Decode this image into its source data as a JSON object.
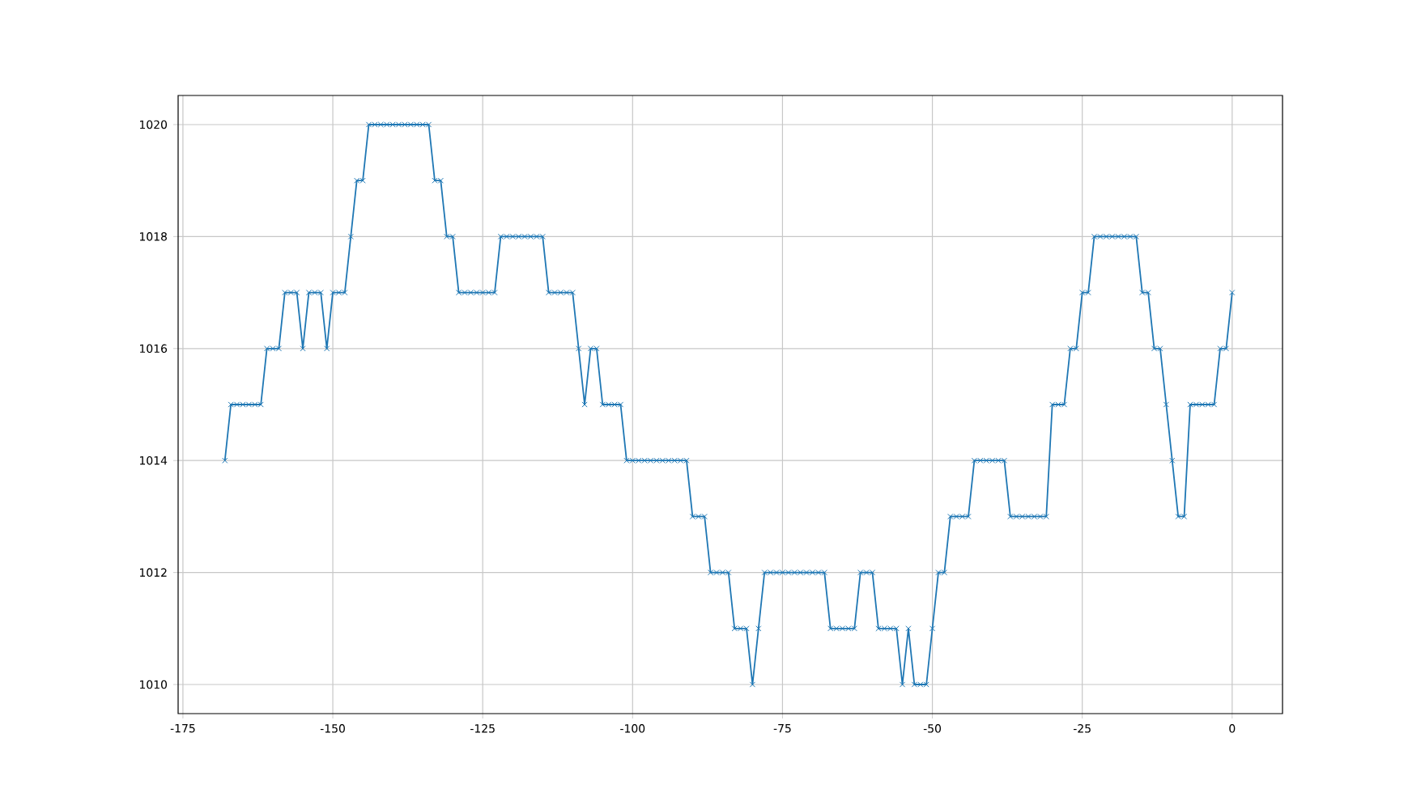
{
  "chart_data": {
    "type": "line",
    "color": "#1f77b4",
    "marker": "cross",
    "grid": true,
    "x": [
      -168,
      -167,
      -166,
      -165,
      -164,
      -163,
      -162,
      -161,
      -160,
      -159,
      -158,
      -157,
      -156,
      -155,
      -154,
      -153,
      -152,
      -151,
      -150,
      -149,
      -148,
      -147,
      -146,
      -145,
      -144,
      -143,
      -142,
      -141,
      -140,
      -139,
      -138,
      -137,
      -136,
      -135,
      -134,
      -133,
      -132,
      -131,
      -130,
      -129,
      -128,
      -127,
      -126,
      -125,
      -124,
      -123,
      -122,
      -121,
      -120,
      -119,
      -118,
      -117,
      -116,
      -115,
      -114,
      -113,
      -112,
      -111,
      -110,
      -109,
      -108,
      -107,
      -106,
      -105,
      -104,
      -103,
      -102,
      -101,
      -100,
      -99,
      -98,
      -97,
      -96,
      -95,
      -94,
      -93,
      -92,
      -91,
      -90,
      -89,
      -88,
      -87,
      -86,
      -85,
      -84,
      -83,
      -82,
      -81,
      -80,
      -79,
      -78,
      -77,
      -76,
      -75,
      -74,
      -73,
      -72,
      -71,
      -70,
      -69,
      -68,
      -67,
      -66,
      -65,
      -64,
      -63,
      -62,
      -61,
      -60,
      -59,
      -58,
      -57,
      -56,
      -55,
      -54,
      -53,
      -52,
      -51,
      -50,
      -49,
      -48,
      -47,
      -46,
      -45,
      -44,
      -43,
      -42,
      -41,
      -40,
      -39,
      -38,
      -37,
      -36,
      -35,
      -34,
      -33,
      -32,
      -31,
      -30,
      -29,
      -28,
      -27,
      -26,
      -25,
      -24,
      -23,
      -22,
      -21,
      -20,
      -19,
      -18,
      -17,
      -16,
      -15,
      -14,
      -13,
      -12,
      -11,
      -10,
      -9,
      -8,
      -7,
      -6,
      -5,
      -4,
      -3,
      -2,
      -1,
      0
    ],
    "values": [
      1014,
      1015,
      1015,
      1015,
      1015,
      1015,
      1015,
      1016,
      1016,
      1016,
      1017,
      1017,
      1017,
      1016,
      1017,
      1017,
      1017,
      1016,
      1017,
      1017,
      1017,
      1018,
      1019,
      1019,
      1020,
      1020,
      1020,
      1020,
      1020,
      1020,
      1020,
      1020,
      1020,
      1020,
      1020,
      1019,
      1019,
      1018,
      1018,
      1017,
      1017,
      1017,
      1017,
      1017,
      1017,
      1017,
      1018,
      1018,
      1018,
      1018,
      1018,
      1018,
      1018,
      1018,
      1017,
      1017,
      1017,
      1017,
      1017,
      1016,
      1015,
      1016,
      1016,
      1015,
      1015,
      1015,
      1015,
      1014,
      1014,
      1014,
      1014,
      1014,
      1014,
      1014,
      1014,
      1014,
      1014,
      1014,
      1013,
      1013,
      1013,
      1012,
      1012,
      1012,
      1012,
      1011,
      1011,
      1011,
      1010,
      1011,
      1012,
      1012,
      1012,
      1012,
      1012,
      1012,
      1012,
      1012,
      1012,
      1012,
      1012,
      1011,
      1011,
      1011,
      1011,
      1011,
      1012,
      1012,
      1012,
      1011,
      1011,
      1011,
      1011,
      1010,
      1011,
      1010,
      1010,
      1010,
      1011,
      1012,
      1012,
      1013,
      1013,
      1013,
      1013,
      1014,
      1014,
      1014,
      1014,
      1014,
      1014,
      1013,
      1013,
      1013,
      1013,
      1013,
      1013,
      1013,
      1015,
      1015,
      1015,
      1016,
      1016,
      1017,
      1017,
      1018,
      1018,
      1018,
      1018,
      1018,
      1018,
      1018,
      1018,
      1017,
      1017,
      1016,
      1016,
      1015,
      1014,
      1013,
      1013,
      1015,
      1015,
      1015,
      1015,
      1015,
      1016,
      1016,
      1017
    ],
    "xlim": [
      -175.8,
      8.4
    ],
    "ylim": [
      1009.48,
      1020.52
    ],
    "xticks": [
      -175,
      -150,
      -125,
      -100,
      -75,
      -50,
      -25,
      0
    ],
    "yticks": [
      1010,
      1012,
      1014,
      1016,
      1018,
      1020
    ]
  }
}
